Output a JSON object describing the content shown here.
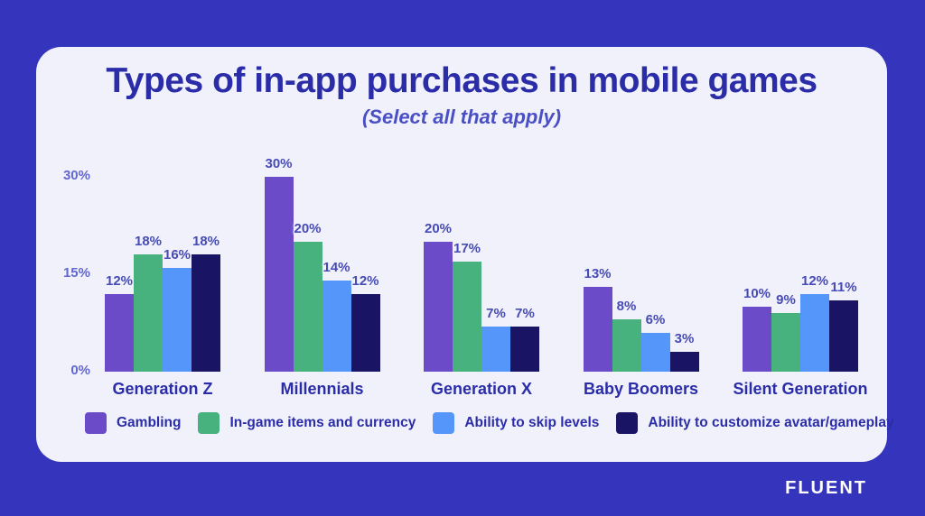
{
  "title": "Types of in-app purchases in mobile games",
  "subtitle": "(Select all that apply)",
  "brand": {
    "logo_text": "FLUENT"
  },
  "colors": {
    "background": "#3434BC",
    "card": "#F0F1FB",
    "title": "#2B2DA8",
    "subtitle": "#4A50C4",
    "axis_label": "#6266D2",
    "value_label": "#474BB4",
    "category_label": "#2B2DA8",
    "legend_label": "#2B2DA8",
    "logo_text": "#FFFFFF"
  },
  "chart_data": {
    "type": "bar",
    "title": "Types of in-app purchases in mobile games",
    "subtitle": "(Select all that apply)",
    "categories": [
      "Generation Z",
      "Millennials",
      "Generation X",
      "Baby Boomers",
      "Silent Generation"
    ],
    "series": [
      {
        "name": "Gambling",
        "color": "#6C4BC8",
        "values": [
          12,
          30,
          20,
          13,
          10
        ]
      },
      {
        "name": "In-game items and currency",
        "color": "#48B27E",
        "values": [
          18,
          20,
          17,
          8,
          9
        ]
      },
      {
        "name": "Ability to skip levels",
        "color": "#5596FA",
        "values": [
          16,
          14,
          7,
          6,
          12
        ]
      },
      {
        "name": "Ability to customize avatar/gameplay",
        "color": "#1A1464",
        "values": [
          18,
          12,
          7,
          3,
          11
        ]
      }
    ],
    "ylim": [
      0,
      30
    ],
    "yticks": [
      30,
      15,
      0
    ],
    "tick_suffix": "%",
    "value_suffix": "%",
    "grid": false,
    "legend_position": "bottom"
  }
}
